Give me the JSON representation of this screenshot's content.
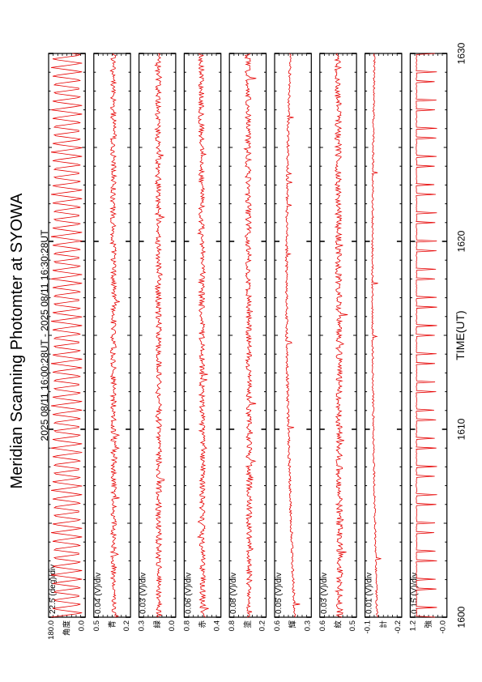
{
  "title": "Meridian Scanning Photomter at SYOWA",
  "subtitle": "2025 08/11 16:00:28UT - 2025 08/11 16:30:28UT",
  "xlabel": "TIME(UT)",
  "line_color": "#e60000",
  "chart_data": {
    "type": "line",
    "x_ticks": [
      "1600",
      "1610",
      "1620",
      "1630"
    ],
    "x_range": [
      1600,
      1630
    ],
    "panels": [
      {
        "id": "angle",
        "scale": "22.5 (deg)/div",
        "yticks": [
          "180.0",
          "角度",
          "0.0"
        ],
        "ylim": [
          0,
          180
        ],
        "trace": "sawtooth",
        "base": 0.5,
        "trend": 0,
        "noise": 0
      },
      {
        "id": "p1",
        "scale": "0.04 (V)/div",
        "yticks": [
          "0.5",
          "青",
          "0.2"
        ],
        "ylim": [
          0.2,
          0.5
        ],
        "trace": "noise",
        "base": 0.55,
        "trend": -0.05,
        "noise": 0.09
      },
      {
        "id": "p2",
        "scale": "0.03 (V)/div",
        "yticks": [
          "0.3",
          "緑",
          "0.0"
        ],
        "ylim": [
          0.0,
          0.3
        ],
        "trace": "noise",
        "base": 0.55,
        "trend": -0.1,
        "noise": 0.09
      },
      {
        "id": "p3",
        "scale": "0.06 (V)/div",
        "yticks": [
          "0.8",
          "赤",
          "0.4"
        ],
        "ylim": [
          0.4,
          0.8
        ],
        "trace": "noise",
        "base": 0.5,
        "trend": -0.15,
        "noise": 0.09
      },
      {
        "id": "p4",
        "scale": "0.08 (V)/div",
        "yticks": [
          "0.8",
          "塗",
          "0.2"
        ],
        "ylim": [
          0.2,
          0.8
        ],
        "trace": "noise",
        "base": 0.55,
        "trend": -0.15,
        "noise": 0.09
      },
      {
        "id": "p5",
        "scale": "0.05 (V)/div",
        "yticks": [
          "0.6",
          "輝",
          "0.3"
        ],
        "ylim": [
          0.3,
          0.6
        ],
        "trace": "drift",
        "base": 0.55,
        "trend": -0.35,
        "noise": 0.04
      },
      {
        "id": "p6",
        "scale": "0.03 (V)/div",
        "yticks": [
          "0.6",
          "紋",
          "0.5"
        ],
        "ylim": [
          0.5,
          0.6
        ],
        "trace": "noise",
        "base": 0.55,
        "trend": -0.2,
        "noise": 0.1
      },
      {
        "id": "p7",
        "scale": "0.01 (V)/div",
        "yticks": [
          "-0.1",
          "計",
          "-0.2"
        ],
        "ylim": [
          -0.2,
          -0.1
        ],
        "trace": "drift",
        "base": 0.3,
        "trend": -0.2,
        "noise": 0.03
      },
      {
        "id": "p8",
        "scale": "0.15 (V)/div",
        "yticks": [
          "1.2",
          "強",
          "-0.0"
        ],
        "ylim": [
          0.0,
          1.2
        ],
        "trace": "spikes",
        "base": 0.12,
        "trend": 0,
        "noise": 0.02
      }
    ]
  }
}
